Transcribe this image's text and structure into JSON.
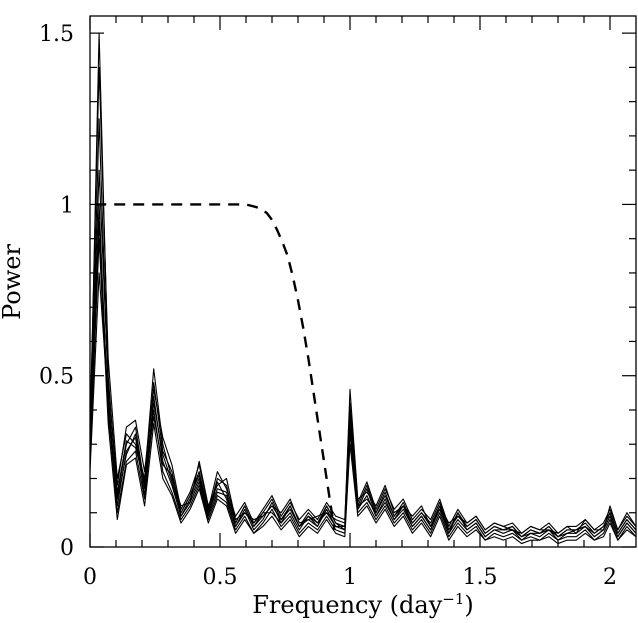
{
  "chart_data": {
    "type": "line",
    "title": "",
    "xlabel": "Frequency (day",
    "xlabel_sup": "−1",
    "xlabel_suffix": ")",
    "ylabel": "Power",
    "xlim": [
      0,
      2.1
    ],
    "ylim": [
      0,
      1.55
    ],
    "x_ticks": [
      {
        "value": 0,
        "label": "0"
      },
      {
        "value": 0.5,
        "label": "0.5"
      },
      {
        "value": 1,
        "label": "1"
      },
      {
        "value": 1.5,
        "label": "1.5"
      },
      {
        "value": 2,
        "label": "2"
      }
    ],
    "y_ticks": [
      {
        "value": 0,
        "label": "0"
      },
      {
        "value": 0.5,
        "label": "0.5"
      },
      {
        "value": 1,
        "label": "1"
      },
      {
        "value": 1.5,
        "label": "1.5"
      }
    ],
    "grid": false,
    "legend": "none",
    "x": [
      0.0,
      0.035,
      0.07,
      0.105,
      0.14,
      0.175,
      0.21,
      0.245,
      0.28,
      0.315,
      0.35,
      0.385,
      0.42,
      0.455,
      0.49,
      0.525,
      0.56,
      0.595,
      0.63,
      0.665,
      0.7,
      0.735,
      0.77,
      0.805,
      0.84,
      0.875,
      0.91,
      0.945,
      0.98,
      1.0,
      1.03,
      1.065,
      1.1,
      1.135,
      1.17,
      1.205,
      1.24,
      1.275,
      1.31,
      1.345,
      1.38,
      1.415,
      1.45,
      1.485,
      1.52,
      1.555,
      1.59,
      1.625,
      1.66,
      1.695,
      1.73,
      1.765,
      1.8,
      1.835,
      1.87,
      1.905,
      1.94,
      1.975,
      2.0,
      2.03,
      2.065,
      2.1
    ],
    "series": [
      {
        "values": [
          0.3,
          1.5,
          0.5,
          0.15,
          0.3,
          0.35,
          0.18,
          0.48,
          0.28,
          0.22,
          0.1,
          0.15,
          0.22,
          0.1,
          0.2,
          0.18,
          0.07,
          0.12,
          0.06,
          0.1,
          0.14,
          0.08,
          0.12,
          0.06,
          0.1,
          0.07,
          0.12,
          0.07,
          0.06,
          0.4,
          0.12,
          0.18,
          0.1,
          0.16,
          0.09,
          0.13,
          0.07,
          0.1,
          0.07,
          0.13,
          0.05,
          0.1,
          0.06,
          0.08,
          0.04,
          0.06,
          0.05,
          0.06,
          0.03,
          0.05,
          0.04,
          0.06,
          0.03,
          0.05,
          0.05,
          0.07,
          0.04,
          0.06,
          0.1,
          0.04,
          0.08,
          0.05
        ]
      },
      {
        "values": [
          0.35,
          1.4,
          0.55,
          0.2,
          0.33,
          0.3,
          0.2,
          0.52,
          0.3,
          0.2,
          0.12,
          0.13,
          0.25,
          0.12,
          0.18,
          0.2,
          0.08,
          0.1,
          0.08,
          0.09,
          0.12,
          0.1,
          0.14,
          0.07,
          0.08,
          0.09,
          0.1,
          0.08,
          0.07,
          0.46,
          0.14,
          0.16,
          0.12,
          0.18,
          0.1,
          0.12,
          0.09,
          0.12,
          0.06,
          0.12,
          0.07,
          0.09,
          0.07,
          0.09,
          0.05,
          0.07,
          0.06,
          0.05,
          0.04,
          0.06,
          0.05,
          0.05,
          0.04,
          0.06,
          0.04,
          0.08,
          0.05,
          0.05,
          0.12,
          0.05,
          0.1,
          0.06
        ]
      },
      {
        "values": [
          0.28,
          1.25,
          0.45,
          0.12,
          0.28,
          0.32,
          0.15,
          0.44,
          0.25,
          0.18,
          0.09,
          0.14,
          0.2,
          0.09,
          0.16,
          0.15,
          0.06,
          0.11,
          0.05,
          0.08,
          0.13,
          0.07,
          0.1,
          0.05,
          0.09,
          0.06,
          0.11,
          0.06,
          0.05,
          0.38,
          0.11,
          0.15,
          0.09,
          0.14,
          0.08,
          0.11,
          0.06,
          0.09,
          0.05,
          0.11,
          0.04,
          0.08,
          0.05,
          0.07,
          0.03,
          0.05,
          0.04,
          0.05,
          0.02,
          0.04,
          0.03,
          0.05,
          0.02,
          0.04,
          0.04,
          0.06,
          0.03,
          0.05,
          0.09,
          0.03,
          0.07,
          0.04
        ]
      },
      {
        "values": [
          0.32,
          1.1,
          0.48,
          0.18,
          0.35,
          0.37,
          0.22,
          0.46,
          0.32,
          0.24,
          0.11,
          0.16,
          0.24,
          0.11,
          0.22,
          0.17,
          0.09,
          0.13,
          0.07,
          0.11,
          0.15,
          0.09,
          0.13,
          0.08,
          0.11,
          0.08,
          0.13,
          0.09,
          0.08,
          0.42,
          0.13,
          0.19,
          0.11,
          0.17,
          0.11,
          0.14,
          0.08,
          0.11,
          0.08,
          0.14,
          0.06,
          0.11,
          0.07,
          0.09,
          0.05,
          0.07,
          0.06,
          0.07,
          0.04,
          0.06,
          0.05,
          0.07,
          0.04,
          0.06,
          0.06,
          0.08,
          0.05,
          0.07,
          0.11,
          0.05,
          0.09,
          0.06
        ]
      },
      {
        "values": [
          0.25,
          0.95,
          0.4,
          0.1,
          0.25,
          0.28,
          0.14,
          0.4,
          0.22,
          0.16,
          0.08,
          0.12,
          0.18,
          0.08,
          0.15,
          0.13,
          0.05,
          0.09,
          0.04,
          0.07,
          0.11,
          0.06,
          0.09,
          0.04,
          0.07,
          0.05,
          0.09,
          0.05,
          0.04,
          0.34,
          0.1,
          0.13,
          0.08,
          0.12,
          0.07,
          0.1,
          0.05,
          0.08,
          0.04,
          0.1,
          0.03,
          0.07,
          0.04,
          0.06,
          0.02,
          0.04,
          0.03,
          0.04,
          0.02,
          0.03,
          0.02,
          0.04,
          0.02,
          0.03,
          0.03,
          0.05,
          0.02,
          0.04,
          0.08,
          0.02,
          0.06,
          0.03
        ]
      },
      {
        "values": [
          0.22,
          0.8,
          0.42,
          0.14,
          0.27,
          0.33,
          0.17,
          0.42,
          0.27,
          0.19,
          0.1,
          0.15,
          0.21,
          0.1,
          0.17,
          0.16,
          0.07,
          0.12,
          0.06,
          0.09,
          0.12,
          0.08,
          0.11,
          0.06,
          0.09,
          0.07,
          0.1,
          0.06,
          0.06,
          0.36,
          0.12,
          0.14,
          0.1,
          0.15,
          0.09,
          0.12,
          0.07,
          0.1,
          0.06,
          0.12,
          0.05,
          0.09,
          0.06,
          0.08,
          0.04,
          0.06,
          0.05,
          0.06,
          0.03,
          0.05,
          0.04,
          0.06,
          0.03,
          0.05,
          0.05,
          0.06,
          0.04,
          0.06,
          0.1,
          0.04,
          0.08,
          0.05
        ]
      },
      {
        "values": [
          0.3,
          1.0,
          0.38,
          0.16,
          0.31,
          0.29,
          0.19,
          0.38,
          0.24,
          0.21,
          0.09,
          0.13,
          0.19,
          0.09,
          0.19,
          0.14,
          0.06,
          0.1,
          0.07,
          0.1,
          0.1,
          0.07,
          0.12,
          0.06,
          0.08,
          0.06,
          0.12,
          0.07,
          0.05,
          0.33,
          0.11,
          0.17,
          0.09,
          0.13,
          0.08,
          0.12,
          0.06,
          0.09,
          0.05,
          0.12,
          0.04,
          0.1,
          0.05,
          0.07,
          0.03,
          0.05,
          0.05,
          0.05,
          0.03,
          0.04,
          0.04,
          0.05,
          0.03,
          0.04,
          0.05,
          0.06,
          0.03,
          0.05,
          0.09,
          0.03,
          0.07,
          0.04
        ]
      },
      {
        "values": [
          0.26,
          0.9,
          0.36,
          0.08,
          0.24,
          0.26,
          0.12,
          0.36,
          0.2,
          0.15,
          0.07,
          0.11,
          0.17,
          0.07,
          0.14,
          0.12,
          0.04,
          0.08,
          0.04,
          0.06,
          0.09,
          0.05,
          0.08,
          0.03,
          0.06,
          0.04,
          0.08,
          0.04,
          0.03,
          0.3,
          0.09,
          0.12,
          0.07,
          0.11,
          0.06,
          0.09,
          0.04,
          0.07,
          0.03,
          0.09,
          0.02,
          0.06,
          0.03,
          0.05,
          0.02,
          0.03,
          0.02,
          0.03,
          0.01,
          0.02,
          0.02,
          0.03,
          0.01,
          0.02,
          0.02,
          0.04,
          0.02,
          0.03,
          0.07,
          0.02,
          0.05,
          0.03
        ]
      }
    ],
    "window_function": {
      "style": "dashed",
      "x": [
        0.02,
        0.6,
        0.65,
        0.68,
        0.7,
        0.72,
        0.74,
        0.76,
        0.78,
        0.8,
        0.82,
        0.84,
        0.86,
        0.88,
        0.9,
        0.92,
        0.94
      ],
      "y": [
        1.0,
        1.0,
        0.99,
        0.975,
        0.955,
        0.925,
        0.89,
        0.85,
        0.79,
        0.72,
        0.64,
        0.55,
        0.45,
        0.35,
        0.25,
        0.15,
        0.05
      ]
    }
  }
}
